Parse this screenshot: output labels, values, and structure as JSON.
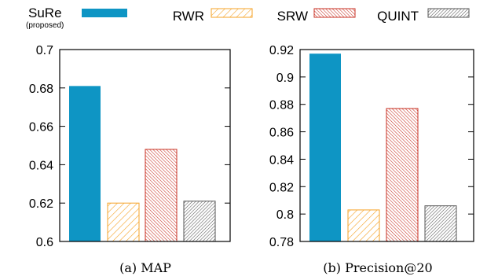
{
  "legend": {
    "items": [
      {
        "label": "SuRe",
        "sublabel": "(proposed)",
        "color": "#0e95c4",
        "pattern": "solid"
      },
      {
        "label": "RWR",
        "color": "#f5a327",
        "pattern": "hatch-sparse"
      },
      {
        "label": "SRW",
        "color": "#c83224",
        "pattern": "hatch-dense"
      },
      {
        "label": "QUINT",
        "color": "#555555",
        "pattern": "hatch-dense"
      }
    ]
  },
  "chart_data": [
    {
      "type": "bar",
      "caption": "(a)  MAP",
      "categories": [
        "SuRe",
        "RWR",
        "SRW",
        "QUINT"
      ],
      "values": [
        0.681,
        0.62,
        0.648,
        0.621
      ],
      "ylim": [
        0.6,
        0.7
      ],
      "yticks": [
        "0.6",
        "0.62",
        "0.64",
        "0.66",
        "0.68",
        "0.7"
      ],
      "ytick_values": [
        0.6,
        0.62,
        0.64,
        0.66,
        0.68,
        0.7
      ],
      "grid": false,
      "legend_position": "top"
    },
    {
      "type": "bar",
      "caption": "(b)  Precision@20",
      "categories": [
        "SuRe",
        "RWR",
        "SRW",
        "QUINT"
      ],
      "values": [
        0.917,
        0.803,
        0.877,
        0.806
      ],
      "ylim": [
        0.78,
        0.92
      ],
      "yticks": [
        "0.78",
        "0.8",
        "0.82",
        "0.84",
        "0.86",
        "0.88",
        "0.9",
        "0.92"
      ],
      "ytick_values": [
        0.78,
        0.8,
        0.82,
        0.84,
        0.86,
        0.88,
        0.9,
        0.92
      ],
      "grid": false,
      "legend_position": "top"
    }
  ]
}
